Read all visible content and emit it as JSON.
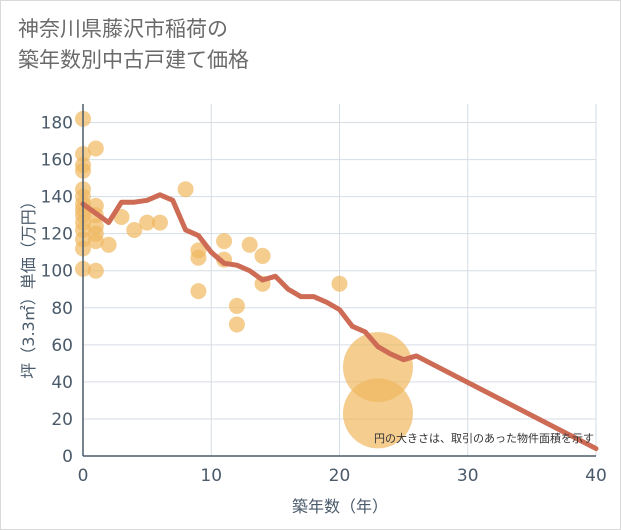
{
  "title": {
    "line1": "神奈川県藤沢市稲荷の",
    "line2": "築年数別中古戸建て価格"
  },
  "colors": {
    "scatter": "#f0b860",
    "line": "#cd6b55",
    "grid": "#d6dde4",
    "axis": "#4a5a6a"
  },
  "chart_data": {
    "type": "scatter",
    "xlabel": "築年数（年）",
    "ylabel": "坪（3.3㎡）単価（万円）",
    "xlim": [
      0,
      40
    ],
    "ylim": [
      0,
      190
    ],
    "xticks": [
      0,
      10,
      20,
      30,
      40
    ],
    "yticks": [
      0,
      20,
      40,
      60,
      80,
      100,
      120,
      140,
      160,
      180
    ],
    "note": "円の大きさは、取引のあった物件面積を示す",
    "scatter_points": [
      {
        "x": 0,
        "y": 182,
        "size": 1
      },
      {
        "x": 0,
        "y": 163,
        "size": 1
      },
      {
        "x": 0,
        "y": 157,
        "size": 1
      },
      {
        "x": 0,
        "y": 154,
        "size": 1
      },
      {
        "x": 0,
        "y": 144,
        "size": 1
      },
      {
        "x": 0,
        "y": 140,
        "size": 1
      },
      {
        "x": 0,
        "y": 136,
        "size": 1
      },
      {
        "x": 0,
        "y": 133,
        "size": 1
      },
      {
        "x": 0,
        "y": 130,
        "size": 1
      },
      {
        "x": 0,
        "y": 126,
        "size": 1
      },
      {
        "x": 0,
        "y": 122,
        "size": 1
      },
      {
        "x": 0,
        "y": 117,
        "size": 1
      },
      {
        "x": 0,
        "y": 112,
        "size": 1
      },
      {
        "x": 0,
        "y": 101,
        "size": 1
      },
      {
        "x": 1,
        "y": 166,
        "size": 1
      },
      {
        "x": 1,
        "y": 135,
        "size": 1
      },
      {
        "x": 1,
        "y": 130,
        "size": 1
      },
      {
        "x": 1,
        "y": 124,
        "size": 1
      },
      {
        "x": 1,
        "y": 120,
        "size": 1
      },
      {
        "x": 1,
        "y": 116,
        "size": 1
      },
      {
        "x": 1,
        "y": 100,
        "size": 1
      },
      {
        "x": 2,
        "y": 114,
        "size": 1
      },
      {
        "x": 3,
        "y": 129,
        "size": 1
      },
      {
        "x": 4,
        "y": 122,
        "size": 1
      },
      {
        "x": 5,
        "y": 126,
        "size": 1
      },
      {
        "x": 6,
        "y": 126,
        "size": 1
      },
      {
        "x": 8,
        "y": 144,
        "size": 1
      },
      {
        "x": 9,
        "y": 111,
        "size": 1
      },
      {
        "x": 9,
        "y": 107,
        "size": 1
      },
      {
        "x": 9,
        "y": 89,
        "size": 1
      },
      {
        "x": 11,
        "y": 116,
        "size": 1
      },
      {
        "x": 11,
        "y": 106,
        "size": 1
      },
      {
        "x": 12,
        "y": 81,
        "size": 1
      },
      {
        "x": 12,
        "y": 71,
        "size": 1
      },
      {
        "x": 13,
        "y": 114,
        "size": 1
      },
      {
        "x": 14,
        "y": 108,
        "size": 1
      },
      {
        "x": 14,
        "y": 93,
        "size": 1
      },
      {
        "x": 20,
        "y": 93,
        "size": 1
      },
      {
        "x": 23,
        "y": 48,
        "size": 5
      },
      {
        "x": 23,
        "y": 23,
        "size": 5
      }
    ],
    "trend_line": {
      "x": [
        0,
        1,
        2,
        3,
        4,
        5,
        6,
        7,
        8,
        9,
        10,
        11,
        12,
        13,
        14,
        15,
        16,
        17,
        18,
        19,
        20,
        21,
        22,
        23,
        24,
        25,
        26,
        40
      ],
      "y": [
        136,
        131,
        126,
        137,
        137,
        138,
        141,
        138,
        122,
        119,
        110,
        104,
        103,
        100,
        95,
        97,
        90,
        86,
        86,
        83,
        79,
        70,
        67,
        59,
        55,
        52,
        54,
        4
      ]
    }
  }
}
